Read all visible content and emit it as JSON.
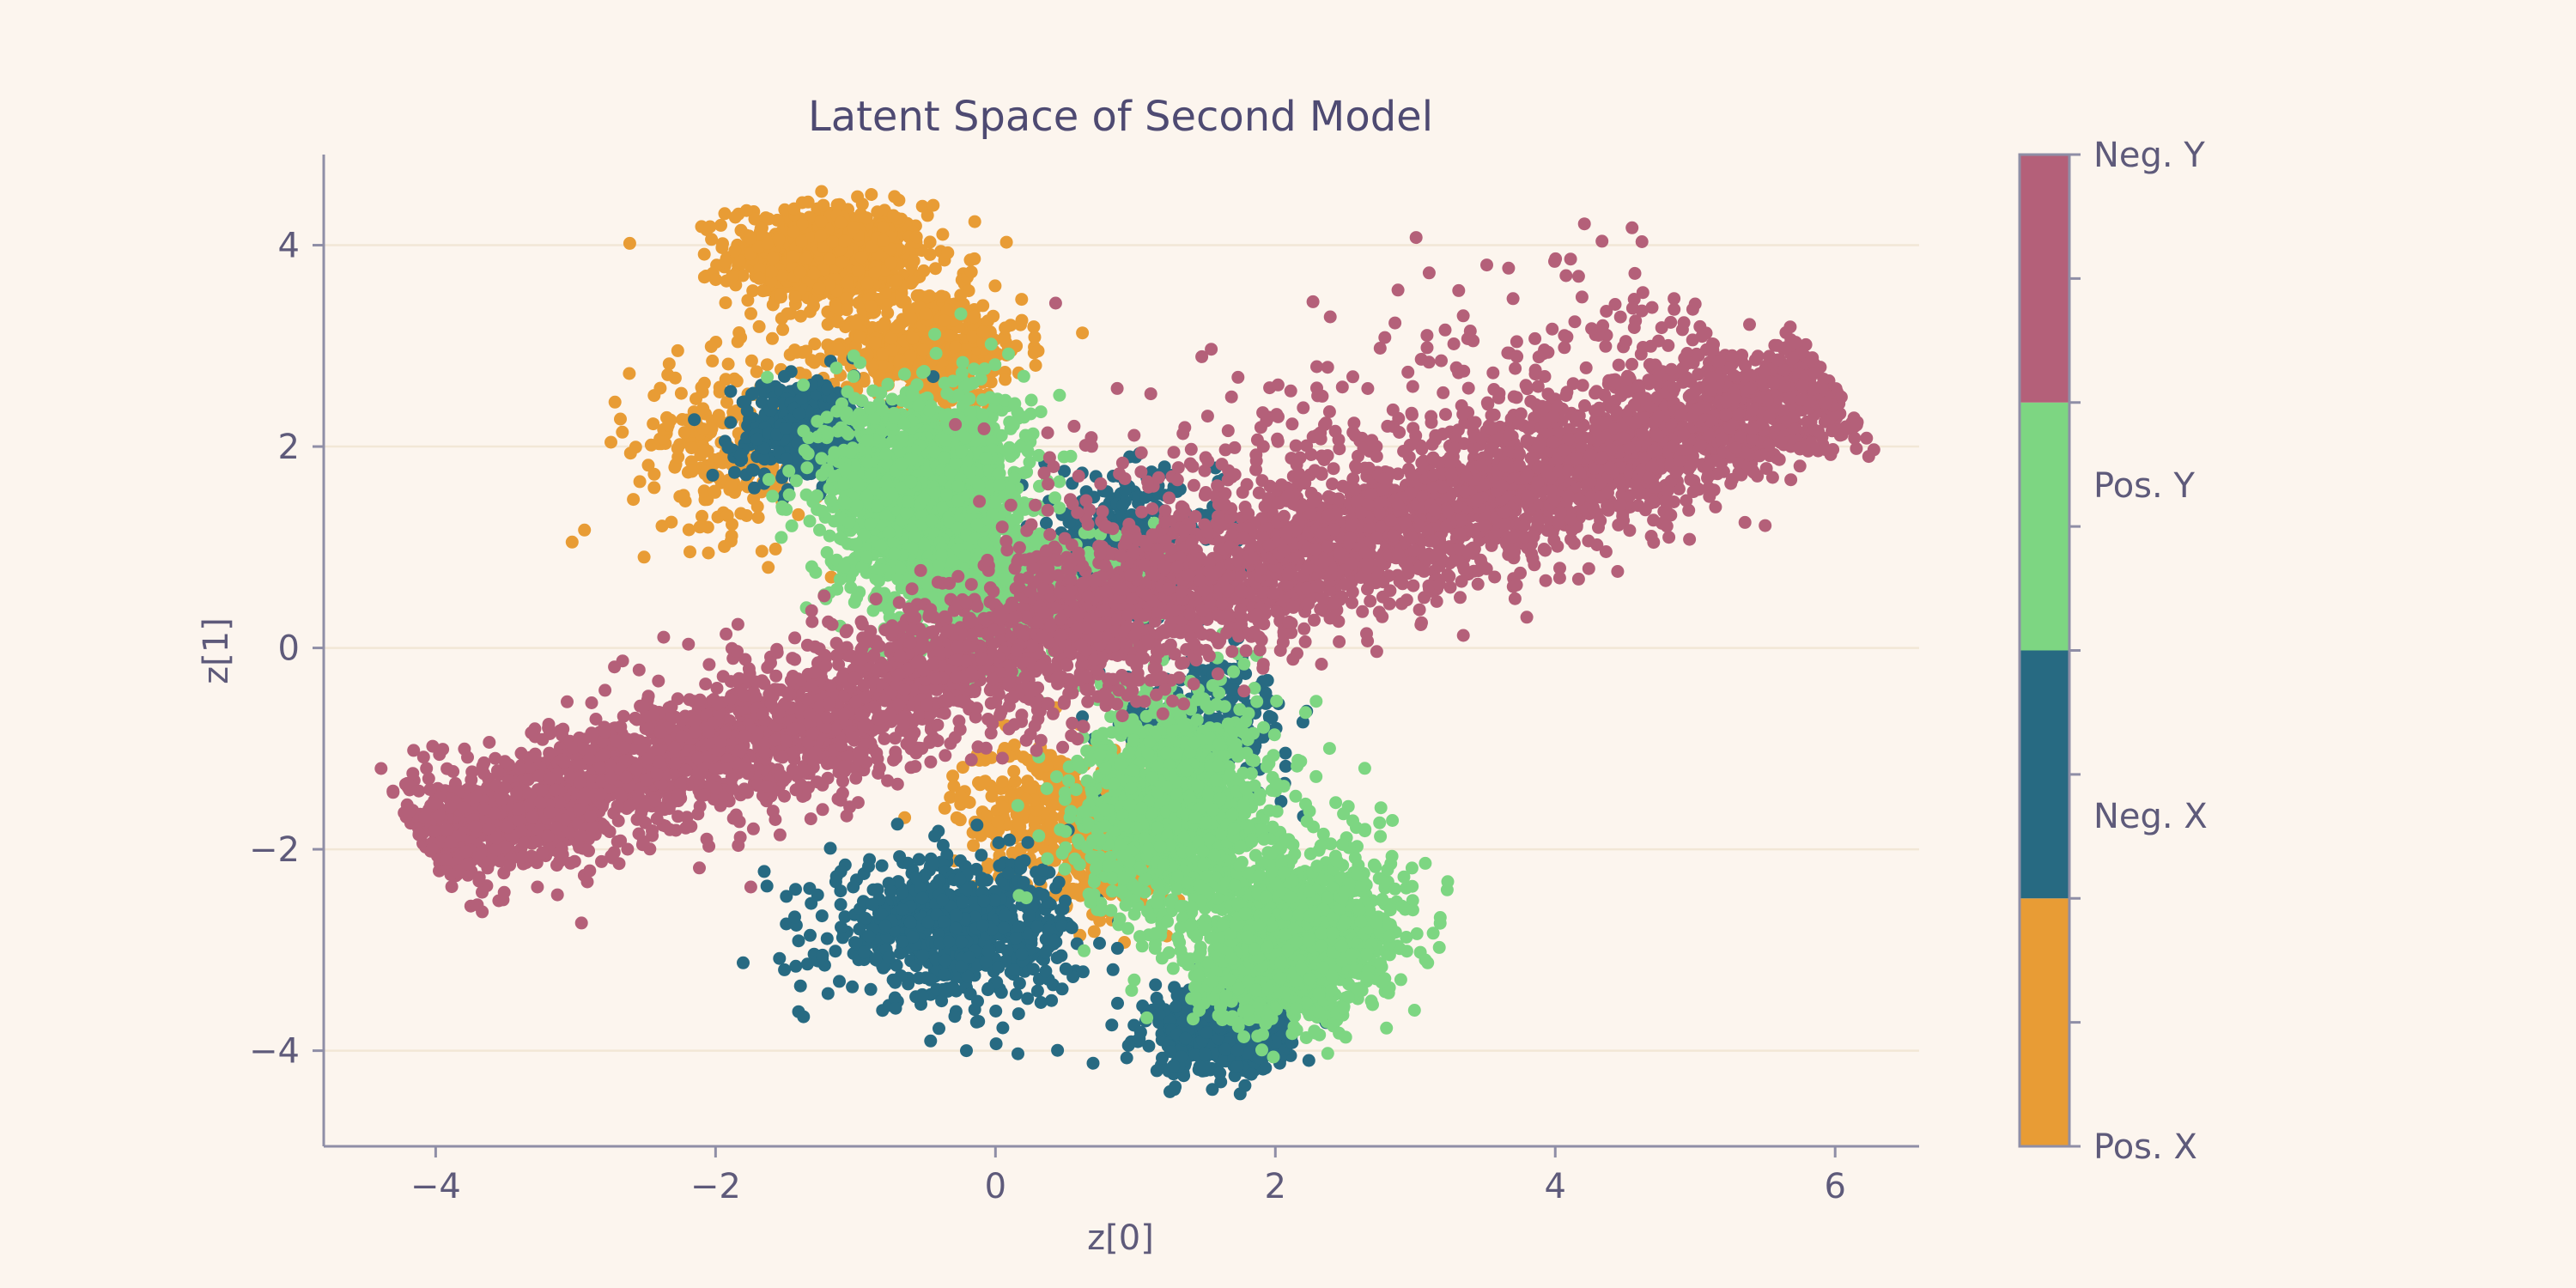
{
  "chart_data": {
    "type": "scatter",
    "title": "Latent Space of Second Model",
    "xlabel": "z[0]",
    "ylabel": "z[1]",
    "xlim": [
      -4.8,
      6.6
    ],
    "ylim": [
      -4.95,
      4.9
    ],
    "xticks": [
      -4,
      -2,
      0,
      2,
      4,
      6
    ],
    "yticks": [
      -4,
      -2,
      0,
      2,
      4
    ],
    "grid": "horizontal",
    "colorbar": {
      "labels": [
        "Pos. X",
        "Neg. X",
        "Pos. Y",
        "Neg. Y"
      ],
      "colors": [
        "#e89c35",
        "#276a82",
        "#7dd682",
        "#b46079"
      ]
    },
    "series": [
      {
        "color": "#e89c35",
        "clusters": [
          {
            "center": [
              -1.2,
              3.9
            ],
            "spread": [
              0.35,
              0.25
            ],
            "count": 700
          },
          {
            "center": [
              -0.5,
              3.0
            ],
            "spread": [
              0.35,
              0.3
            ],
            "count": 550
          },
          {
            "center": [
              -1.9,
              2.0
            ],
            "spread": [
              0.35,
              0.45
            ],
            "count": 260
          },
          {
            "center": [
              0.4,
              -1.6
            ],
            "spread": [
              0.35,
              0.35
            ],
            "count": 350
          },
          {
            "center": [
              0.9,
              -2.2
            ],
            "spread": [
              0.25,
              0.25
            ],
            "count": 150
          }
        ]
      },
      {
        "color": "#276a82",
        "clusters": [
          {
            "center": [
              -1.35,
              2.15
            ],
            "spread": [
              0.25,
              0.25
            ],
            "count": 450
          },
          {
            "center": [
              0.9,
              1.0
            ],
            "spread": [
              0.35,
              0.35
            ],
            "count": 380
          },
          {
            "center": [
              -0.3,
              -2.8
            ],
            "spread": [
              0.45,
              0.35
            ],
            "count": 700
          },
          {
            "center": [
              1.6,
              -3.8
            ],
            "spread": [
              0.25,
              0.22
            ],
            "count": 550
          },
          {
            "center": [
              1.5,
              -0.8
            ],
            "spread": [
              0.3,
              0.35
            ],
            "count": 250
          }
        ]
      },
      {
        "color": "#7dd682",
        "clusters": [
          {
            "center": [
              -0.5,
              1.5
            ],
            "spread": [
              0.35,
              0.55
            ],
            "count": 1600
          },
          {
            "center": [
              0.2,
              0.6
            ],
            "spread": [
              0.4,
              0.3
            ],
            "count": 500
          },
          {
            "center": [
              1.3,
              -1.6
            ],
            "spread": [
              0.35,
              0.55
            ],
            "count": 1200
          },
          {
            "center": [
              2.1,
              -3.0
            ],
            "spread": [
              0.35,
              0.35
            ],
            "count": 1100
          },
          {
            "center": [
              2.4,
              -2.5
            ],
            "spread": [
              0.3,
              0.4
            ],
            "count": 250
          }
        ]
      },
      {
        "color": "#b46079",
        "band": {
          "start": [
            -4.1,
            -1.95
          ],
          "end": [
            6.0,
            2.6
          ],
          "halfwidth": 0.32,
          "count": 5200,
          "offband": 650
        }
      }
    ]
  }
}
